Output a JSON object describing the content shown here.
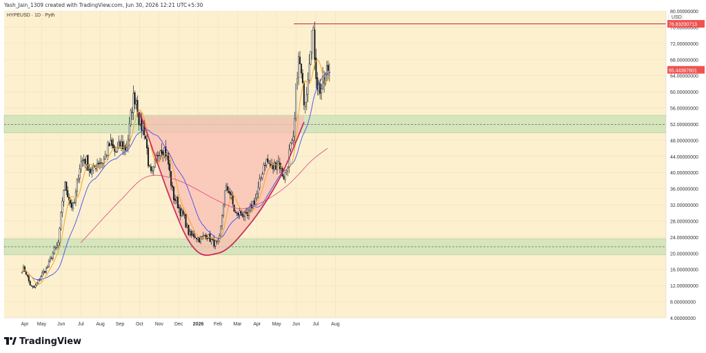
{
  "header": {
    "credit": "Yash_Jain_1309 created with TradingView.com, Jun 30, 2026 12:21 UTC+5:30"
  },
  "footer": {
    "brand": "TradingView"
  },
  "colors": {
    "chart_bg": "#fdf0cf",
    "zone": "#cfe3b9",
    "cup": "#f8bfb3",
    "up": "#ffffff",
    "down": "#1e2024",
    "ema_fast": "#f5a623",
    "ema_mid": "#3d4cf0",
    "ema_slow": "#e0508a",
    "cup_curve": "#c8305a",
    "resistance": "#c93a4c",
    "label_red": "#ef5350"
  },
  "chart_data": {
    "type": "candlestick",
    "symbol_label": "HYPEUSD · 1D · Pyth",
    "currency": "USD",
    "ylim": [
      4,
      80
    ],
    "y_ticks": [
      "80.00000000",
      "76.00000000",
      "72.00000000",
      "68.00000000",
      "64.00000000",
      "60.00000000",
      "56.00000000",
      "52.00000000",
      "48.00000000",
      "44.00000000",
      "40.00000000",
      "36.00000000",
      "32.00000000",
      "28.00000000",
      "24.00000000",
      "20.00000000",
      "16.00000000",
      "12.00000000",
      "8.00000000",
      "4.00000000"
    ],
    "x_ticks": [
      {
        "label": "Apr",
        "t": 0.07
      },
      {
        "label": "May",
        "t": 0.5
      },
      {
        "label": "Jun",
        "t": 1.0
      },
      {
        "label": "Jul",
        "t": 1.5
      },
      {
        "label": "Aug",
        "t": 2.0
      },
      {
        "label": "Sep",
        "t": 2.5
      },
      {
        "label": "Oct",
        "t": 3.0
      },
      {
        "label": "Nov",
        "t": 3.5
      },
      {
        "label": "Dec",
        "t": 4.0
      },
      {
        "label": "2026",
        "t": 4.5
      },
      {
        "label": "Feb",
        "t": 5.0
      },
      {
        "label": "Mar",
        "t": 5.5
      },
      {
        "label": "Apr",
        "t": 6.0
      },
      {
        "label": "May",
        "t": 6.5
      },
      {
        "label": "Jun",
        "t": 7.0
      },
      {
        "label": "Jul",
        "t": 7.5
      },
      {
        "label": "Aug",
        "t": 8.0
      }
    ],
    "price_labels": [
      {
        "text": "76.83200713",
        "y": 76.83
      },
      {
        "text": "65.44367601",
        "y": 65.44
      }
    ],
    "resistance": {
      "y": 76.83,
      "t0": 6.94,
      "t1": 9.4
    },
    "zones": [
      {
        "y0": 49.8,
        "y1": 54.2
      },
      {
        "y0": 19.6,
        "y1": 23.6
      }
    ],
    "zone_midlines": [
      51.9,
      21.6
    ],
    "cup_curve_anchors": [
      [
        3.0,
        55
      ],
      [
        4.2,
        24
      ],
      [
        5.0,
        20
      ],
      [
        5.8,
        27
      ],
      [
        6.6,
        39
      ],
      [
        7.2,
        52.5
      ]
    ],
    "close_anchors": [
      [
        0.0,
        16
      ],
      [
        0.3,
        11.5
      ],
      [
        0.6,
        16
      ],
      [
        0.9,
        22
      ],
      [
        1.1,
        37
      ],
      [
        1.3,
        31
      ],
      [
        1.5,
        43
      ],
      [
        1.8,
        41
      ],
      [
        2.3,
        46
      ],
      [
        2.6,
        46
      ],
      [
        2.9,
        58
      ],
      [
        3.05,
        52
      ],
      [
        3.3,
        40
      ],
      [
        3.6,
        47
      ],
      [
        3.9,
        34
      ],
      [
        4.1,
        29
      ],
      [
        4.35,
        24
      ],
      [
        4.75,
        24
      ],
      [
        5.0,
        22
      ],
      [
        5.2,
        36
      ],
      [
        5.5,
        30
      ],
      [
        5.7,
        29
      ],
      [
        5.9,
        32
      ],
      [
        6.2,
        42
      ],
      [
        6.5,
        42
      ],
      [
        6.7,
        40
      ],
      [
        6.9,
        46
      ],
      [
        7.05,
        68
      ],
      [
        7.2,
        58
      ],
      [
        7.4,
        74
      ],
      [
        7.55,
        62
      ],
      [
        7.7,
        62
      ],
      [
        7.85,
        65.4
      ]
    ],
    "ma200_anchors": [
      [
        1.5,
        22.6
      ],
      [
        2.5,
        33
      ],
      [
        3.2,
        39
      ],
      [
        4.0,
        38
      ],
      [
        5.0,
        33
      ],
      [
        5.6,
        31
      ],
      [
        6.2,
        33
      ],
      [
        6.8,
        37
      ],
      [
        7.4,
        43
      ],
      [
        7.8,
        46
      ]
    ],
    "ma_fast_period": 8,
    "ma_mid_period": 22,
    "num_candles": 230,
    "grid": true
  }
}
